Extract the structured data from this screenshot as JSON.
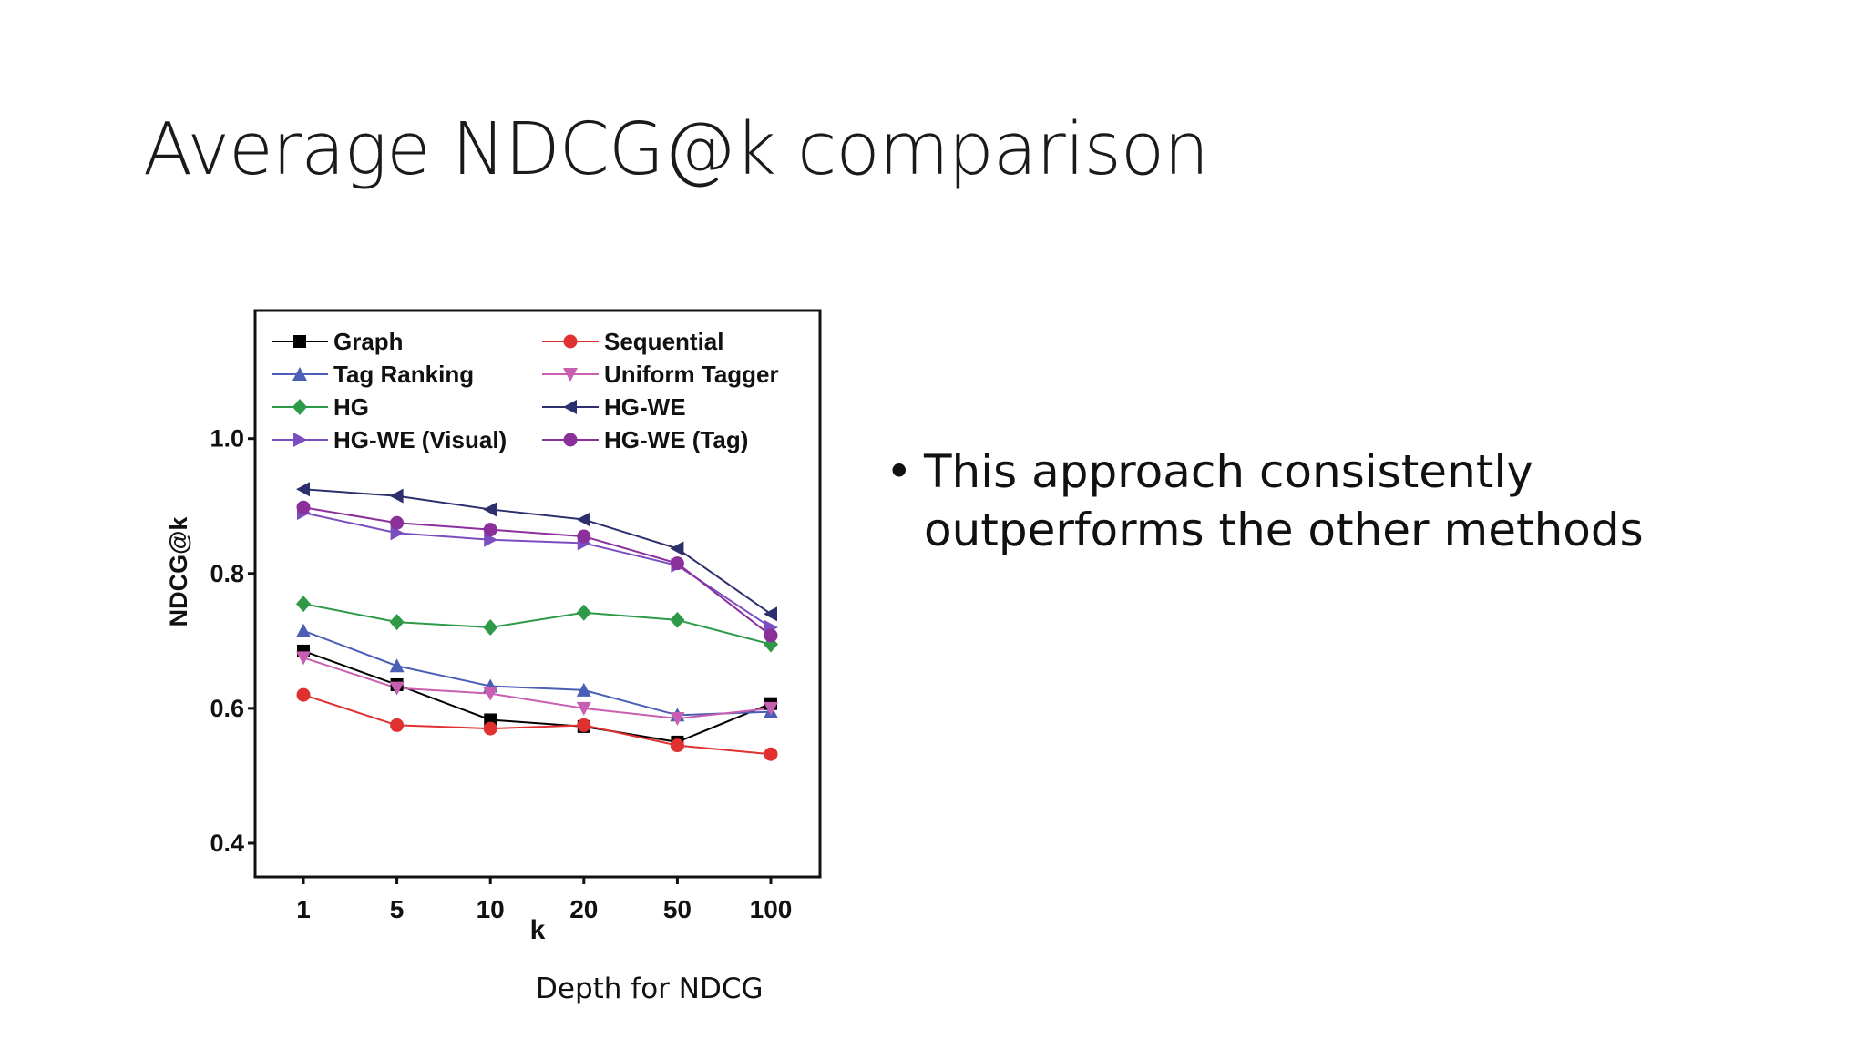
{
  "slide": {
    "title": "Average NDCG@k comparison",
    "bullet": "This approach consistently outperforms the other methods",
    "bullet_marker": "•",
    "caption": "Depth for NDCG"
  },
  "chart_data": {
    "type": "line",
    "title": "",
    "xlabel": "k",
    "ylabel": "NDCG@k",
    "categories": [
      "1",
      "5",
      "10",
      "20",
      "50",
      "100"
    ],
    "ylim": [
      0.35,
      1.19
    ],
    "yticks": [
      0.4,
      0.6,
      0.8,
      1.0
    ],
    "ytick_labels": [
      "0.4",
      "0.6",
      "0.8",
      "1.0"
    ],
    "grid": false,
    "legend_position": "top",
    "series": [
      {
        "name": "Graph",
        "color": "#000000",
        "marker": "square",
        "values": [
          0.685,
          0.635,
          0.583,
          0.573,
          0.55,
          0.607
        ]
      },
      {
        "name": "Sequential",
        "color": "#e03030",
        "marker": "circle",
        "values": [
          0.62,
          0.575,
          0.57,
          0.575,
          0.545,
          0.532
        ]
      },
      {
        "name": "Tag Ranking",
        "color": "#4a5fb5",
        "marker": "triangle-up",
        "values": [
          0.715,
          0.663,
          0.633,
          0.627,
          0.59,
          0.595
        ]
      },
      {
        "name": "Uniform Tagger",
        "color": "#c85fb0",
        "marker": "triangle-down",
        "values": [
          0.675,
          0.63,
          0.622,
          0.6,
          0.585,
          0.6
        ]
      },
      {
        "name": "HG",
        "color": "#2e9a48",
        "marker": "diamond",
        "values": [
          0.755,
          0.728,
          0.72,
          0.742,
          0.731,
          0.695
        ]
      },
      {
        "name": "HG-WE",
        "color": "#2c2f6b",
        "marker": "triangle-left",
        "values": [
          0.925,
          0.915,
          0.895,
          0.88,
          0.837,
          0.74
        ]
      },
      {
        "name": "HG-WE (Visual)",
        "color": "#7a4ec0",
        "marker": "triangle-right",
        "values": [
          0.89,
          0.86,
          0.85,
          0.845,
          0.812,
          0.72
        ]
      },
      {
        "name": "HG-WE (Tag)",
        "color": "#8b2f9b",
        "marker": "circle",
        "values": [
          0.898,
          0.875,
          0.865,
          0.855,
          0.815,
          0.708
        ]
      }
    ]
  }
}
